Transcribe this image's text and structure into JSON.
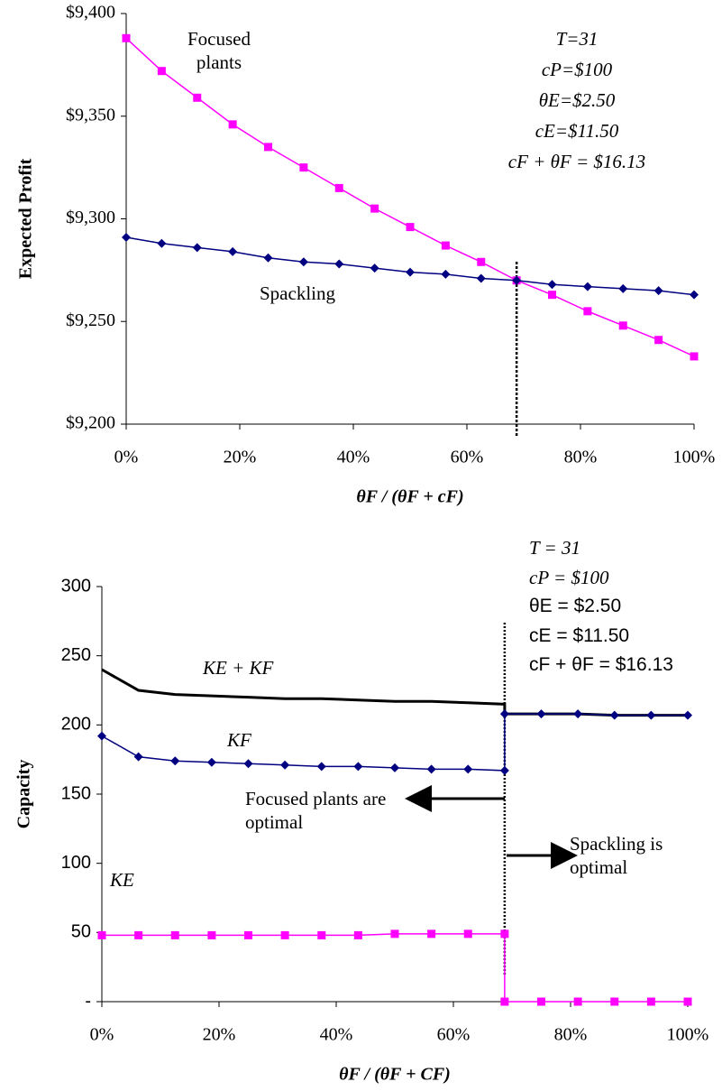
{
  "chart_data": [
    {
      "type": "line",
      "y_label": "Expected Profit",
      "x_label": "θF / (θF + cF)",
      "x": [
        0,
        6.25,
        12.5,
        18.75,
        25,
        31.25,
        37.5,
        43.75,
        50,
        56.25,
        62.5,
        68.75,
        75,
        81.25,
        87.5,
        93.75,
        100
      ],
      "series": [
        {
          "name": "Focused plants",
          "color": "#ff00ff",
          "marker": "square",
          "values": [
            9388,
            9372,
            9359,
            9346,
            9335,
            9325,
            9315,
            9305,
            9296,
            9287,
            9279,
            9270,
            9263,
            9255,
            9248,
            9241,
            9233
          ]
        },
        {
          "name": "Spackling",
          "color": "#000080",
          "marker": "diamond",
          "values": [
            9291,
            9288,
            9286,
            9284,
            9281,
            9279,
            9278,
            9276,
            9274,
            9273,
            9271,
            9270,
            9268,
            9267,
            9266,
            9265,
            9263
          ]
        }
      ],
      "threshold_x": 68.75,
      "xlim": [
        0,
        100
      ],
      "xticks": [
        {
          "value": 0,
          "label": "0%"
        },
        {
          "value": 20,
          "label": "20%"
        },
        {
          "value": 40,
          "label": "40%"
        },
        {
          "value": 60,
          "label": "60%"
        },
        {
          "value": 80,
          "label": "80%"
        },
        {
          "value": 100,
          "label": "100%"
        }
      ],
      "ylim": [
        9200,
        9400
      ],
      "yticks": [
        {
          "value": 9200,
          "label": "$9,200"
        },
        {
          "value": 9250,
          "label": "$9,250"
        },
        {
          "value": 9300,
          "label": "$9,300"
        },
        {
          "value": 9350,
          "label": "$9,350"
        },
        {
          "value": 9400,
          "label": "$9,400"
        }
      ],
      "annotations": [
        "T=31",
        "cP=$100",
        "θE=$2.50",
        "cE=$11.50",
        "cF + θF = $16.13"
      ]
    },
    {
      "type": "line",
      "y_label": "Capacity",
      "x_label": "θF / (θF + CF)",
      "x": [
        0,
        6.25,
        12.5,
        18.75,
        25,
        31.25,
        37.5,
        43.75,
        50,
        56.25,
        62.5,
        68.75,
        68.75,
        75,
        81.25,
        87.5,
        93.75,
        100
      ],
      "series": [
        {
          "name": "KE + KF",
          "color": "#000000",
          "marker": "none",
          "values": [
            240,
            225,
            222,
            221,
            220,
            219,
            219,
            218,
            217,
            217,
            216,
            215,
            208,
            208,
            208,
            207,
            207,
            207
          ]
        },
        {
          "name": "KF",
          "color": "#000080",
          "marker": "diamond",
          "values": [
            192,
            177,
            174,
            173,
            172,
            171,
            170,
            170,
            169,
            168,
            168,
            167,
            208,
            208,
            208,
            207,
            207,
            207
          ]
        },
        {
          "name": "KE",
          "color": "#ff00ff",
          "marker": "square",
          "values": [
            48,
            48,
            48,
            48,
            48,
            48,
            48,
            48,
            49,
            49,
            49,
            49,
            0,
            0,
            0,
            0,
            0,
            0
          ]
        }
      ],
      "threshold_x": 68.75,
      "xlim": [
        0,
        100
      ],
      "xticks": [
        {
          "value": 0,
          "label": "0%"
        },
        {
          "value": 20,
          "label": "20%"
        },
        {
          "value": 40,
          "label": "40%"
        },
        {
          "value": 60,
          "label": "60%"
        },
        {
          "value": 80,
          "label": "80%"
        },
        {
          "value": 100,
          "label": "100%"
        }
      ],
      "ylim": [
        0,
        300
      ],
      "yticks": [
        {
          "value": 0,
          "label": "-"
        },
        50,
        100,
        150,
        200,
        250,
        300
      ],
      "annotations": [
        "T = 31",
        "cP = $100",
        "θE = $2.50",
        "cE = $11.50",
        "cF + θF = $16.13",
        "Focused plants are optimal",
        "Spackling is optimal"
      ]
    }
  ]
}
